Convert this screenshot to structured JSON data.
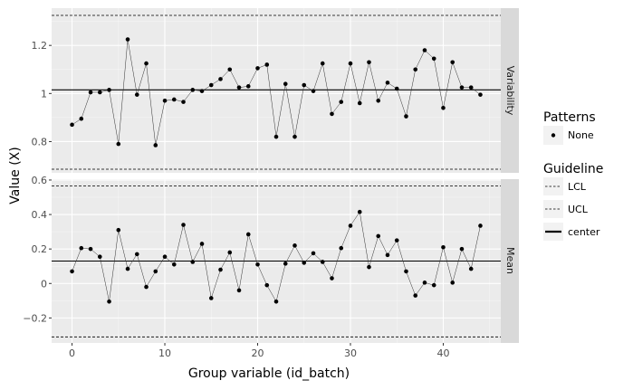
{
  "chart_data": {
    "type": "line",
    "xlabel": "Group variable (id_batch)",
    "ylabel": "Value (X)",
    "x_ticks": [
      "0",
      "10",
      "20",
      "30",
      "40"
    ],
    "xlim": [
      -2.2,
      46.2
    ],
    "x": [
      0,
      1,
      2,
      3,
      4,
      5,
      6,
      7,
      8,
      9,
      10,
      11,
      12,
      13,
      14,
      15,
      16,
      17,
      18,
      19,
      20,
      21,
      22,
      23,
      24,
      25,
      26,
      27,
      28,
      29,
      30,
      31,
      32,
      33,
      34,
      35,
      36,
      37,
      38,
      39,
      40,
      41,
      42,
      43,
      44
    ],
    "panels": [
      {
        "strip": "Variability",
        "ylim": [
          0.67,
          1.355
        ],
        "y_ticks": [
          {
            "v": 0.8,
            "label": "0.8"
          },
          {
            "v": 1.0,
            "label": "1"
          },
          {
            "v": 1.2,
            "label": "1.2"
          }
        ],
        "center": 1.015,
        "ucl": 1.325,
        "lcl": 0.685,
        "values": [
          0.87,
          0.895,
          1.005,
          1.005,
          1.015,
          0.79,
          1.225,
          0.995,
          1.125,
          0.785,
          0.97,
          0.975,
          0.965,
          1.015,
          1.01,
          1.035,
          1.06,
          1.1,
          1.025,
          1.03,
          1.105,
          1.12,
          0.82,
          1.04,
          0.82,
          1.035,
          1.01,
          1.125,
          0.915,
          0.965,
          1.125,
          0.96,
          1.13,
          0.97,
          1.045,
          1.02,
          0.905,
          1.1,
          1.18,
          1.145,
          0.94,
          1.13,
          1.025,
          1.025,
          0.995
        ]
      },
      {
        "strip": "Mean",
        "ylim": [
          -0.345,
          0.605
        ],
        "y_ticks": [
          {
            "v": -0.2,
            "label": "−0.2"
          },
          {
            "v": 0.0,
            "label": "0"
          },
          {
            "v": 0.2,
            "label": "0.2"
          },
          {
            "v": 0.4,
            "label": "0.4"
          },
          {
            "v": 0.6,
            "label": "0.6"
          }
        ],
        "center": 0.13,
        "ucl": 0.565,
        "lcl": -0.31,
        "values": [
          0.07,
          0.205,
          0.2,
          0.155,
          -0.105,
          0.31,
          0.085,
          0.17,
          -0.02,
          0.07,
          0.155,
          0.11,
          0.34,
          0.125,
          0.23,
          -0.085,
          0.08,
          0.18,
          -0.04,
          0.285,
          0.11,
          -0.01,
          -0.105,
          0.115,
          0.22,
          0.12,
          0.175,
          0.125,
          0.03,
          0.205,
          0.335,
          0.415,
          0.095,
          0.275,
          0.165,
          0.25,
          0.07,
          -0.07,
          0.005,
          -0.01,
          0.21,
          0.005,
          0.2,
          0.085,
          0.335
        ]
      }
    ],
    "legends": [
      {
        "title": "Patterns",
        "items": [
          {
            "label": "None",
            "symbol": "point"
          }
        ]
      },
      {
        "title": "Guideline",
        "items": [
          {
            "label": "LCL",
            "symbol": "dashed"
          },
          {
            "label": "UCL",
            "symbol": "dashed"
          },
          {
            "label": "center",
            "symbol": "solid"
          }
        ]
      }
    ],
    "colors": {
      "panel_bg": "#ebebeb",
      "grid_major": "#ffffff",
      "strip_bg": "#d9d9d9",
      "axis_text": "#4d4d4d",
      "line": "#000000",
      "key_bg": "#f2f2f2"
    }
  }
}
